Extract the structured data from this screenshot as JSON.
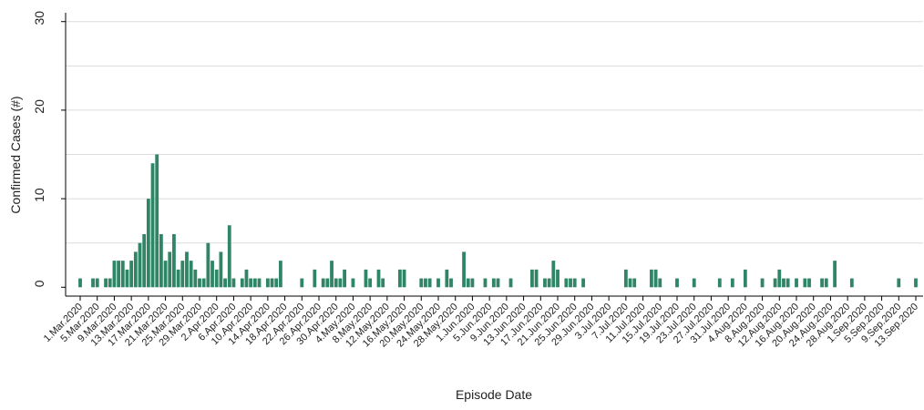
{
  "chart_data": {
    "type": "bar",
    "y_label": "Confirmed Cases (#)",
    "x_label": "Episode Date",
    "categories": [
      "1.Mar.2020",
      null,
      null,
      null,
      "5.Mar.2020",
      null,
      null,
      null,
      "9.Mar.2020",
      null,
      null,
      null,
      "13.Mar.2020",
      null,
      null,
      null,
      "17.Mar.2020",
      null,
      null,
      null,
      "21.Mar.2020",
      null,
      null,
      null,
      "25.Mar.2020",
      null,
      null,
      null,
      "29.Mar.2020",
      null,
      null,
      null,
      "2.Apr.2020",
      null,
      null,
      null,
      "6.Apr.2020",
      null,
      null,
      null,
      "10.Apr.2020",
      null,
      null,
      null,
      "14.Apr.2020",
      null,
      null,
      null,
      "18.Apr.2020",
      null,
      null,
      null,
      "22.Apr.2020",
      null,
      null,
      null,
      "26.Apr.2020",
      null,
      null,
      null,
      "30.Apr.2020",
      null,
      null,
      null,
      "4.May.2020",
      null,
      null,
      null,
      "8.May.2020",
      null,
      null,
      null,
      "12.May.2020",
      null,
      null,
      null,
      "16.May.2020",
      null,
      null,
      null,
      "20.May.2020",
      null,
      null,
      null,
      "24.May.2020",
      null,
      null,
      null,
      "28.May.2020",
      null,
      null,
      null,
      "1.Jun.2020",
      null,
      null,
      null,
      "5.Jun.2020",
      null,
      null,
      null,
      "9.Jun.2020",
      null,
      null,
      null,
      "13.Jun.2020",
      null,
      null,
      null,
      "17.Jun.2020",
      null,
      null,
      null,
      "21.Jun.2020",
      null,
      null,
      null,
      "25.Jun.2020",
      null,
      null,
      null,
      "29.Jun.2020",
      null,
      null,
      null,
      "3.Jul.2020",
      null,
      null,
      null,
      "7.Jul.2020",
      null,
      null,
      null,
      "11.Jul.2020",
      null,
      null,
      null,
      "15.Jul.2020",
      null,
      null,
      null,
      "19.Jul.2020",
      null,
      null,
      null,
      "23.Jul.2020",
      null,
      null,
      null,
      "27.Jul.2020",
      null,
      null,
      null,
      "31.Jul.2020",
      null,
      null,
      null,
      "4.Aug.2020",
      null,
      null,
      null,
      "8.Aug.2020",
      null,
      null,
      null,
      "12.Aug.2020",
      null,
      null,
      null,
      "16.Aug.2020",
      null,
      null,
      null,
      "20.Aug.2020",
      null,
      null,
      null,
      "24.Aug.2020",
      null,
      null,
      null,
      "28.Aug.2020",
      null,
      null,
      null,
      "1.Sep.2020",
      null,
      null,
      null,
      "5.Sep.2020",
      null,
      null,
      null,
      "9.Sep.2020",
      null,
      null,
      null,
      "13.Sep.2020"
    ],
    "values": [
      1,
      0,
      0,
      1,
      1,
      0,
      1,
      1,
      3,
      3,
      3,
      2,
      3,
      4,
      5,
      6,
      10,
      14,
      15,
      6,
      3,
      4,
      6,
      2,
      3,
      4,
      3,
      2,
      1,
      1,
      5,
      3,
      2,
      4,
      1,
      7,
      1,
      0,
      1,
      2,
      1,
      1,
      1,
      0,
      1,
      1,
      1,
      3,
      0,
      0,
      0,
      0,
      1,
      0,
      0,
      2,
      0,
      1,
      1,
      3,
      1,
      1,
      2,
      0,
      1,
      0,
      0,
      2,
      1,
      0,
      2,
      1,
      0,
      0,
      0,
      2,
      2,
      0,
      0,
      0,
      1,
      1,
      1,
      0,
      1,
      0,
      2,
      1,
      0,
      0,
      4,
      1,
      1,
      0,
      0,
      1,
      0,
      1,
      1,
      0,
      0,
      1,
      0,
      0,
      0,
      0,
      2,
      2,
      0,
      1,
      1,
      3,
      2,
      0,
      1,
      1,
      1,
      0,
      1,
      0,
      0,
      0,
      0,
      0,
      0,
      0,
      0,
      0,
      2,
      1,
      1,
      0,
      0,
      0,
      2,
      2,
      1,
      0,
      0,
      0,
      1,
      0,
      0,
      0,
      1,
      0,
      0,
      0,
      0,
      0,
      1,
      0,
      0,
      1,
      0,
      0,
      2,
      0,
      0,
      0,
      1,
      0,
      0,
      1,
      2,
      1,
      1,
      0,
      1,
      0,
      1,
      1,
      0,
      0,
      1,
      1,
      0,
      3,
      0,
      0,
      0,
      1,
      0,
      0,
      0,
      0,
      0,
      0,
      0,
      0,
      0,
      0,
      1,
      0,
      0,
      0,
      1
    ],
    "color": "#2f8566",
    "ylim": [
      -1,
      31
    ],
    "yticks": [
      0,
      10,
      20,
      30
    ],
    "grid_lines": [
      5,
      10,
      15,
      20,
      25,
      30
    ]
  }
}
